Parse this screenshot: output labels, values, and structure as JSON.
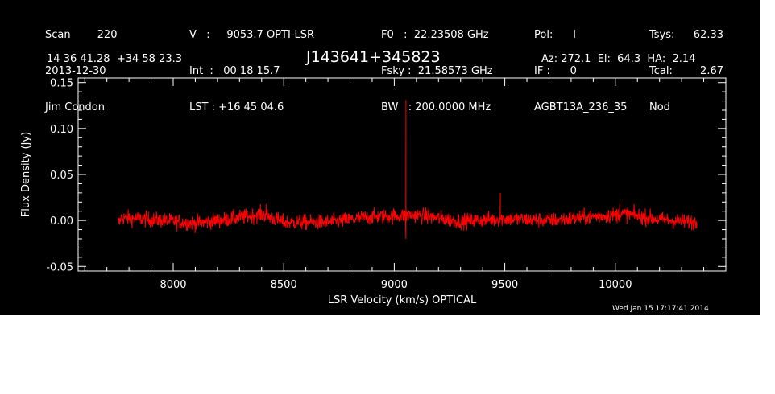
{
  "header": {
    "col1": [
      "Scan        220",
      "2013-12-30",
      "Jim Condon"
    ],
    "col2": [
      "V   :     9053.7 OPTI-LSR",
      "Int  :   00 18 15.7",
      "LST : +16 45 04.6"
    ],
    "col3": [
      "F0   :  22.23508 GHz",
      "Fsky :  21.58573 GHz",
      "BW   : 200.0000 MHz"
    ],
    "col4": [
      "Pol:      I",
      "IF :      0",
      "AGBT13A_236_35"
    ],
    "col5a": [
      "Tsys:",
      "Tcal:",
      "Nod"
    ],
    "col5b": [
      "62.33",
      "2.67",
      ""
    ]
  },
  "coords": "14 36 41.28  +34 58 23.3",
  "source_name": "J143641+345823",
  "az_el_ha": "Az: 272.1  El:  64.3  HA:  2.14",
  "timestamp": "Wed Jan 15 17:17:41 2014",
  "colors": {
    "background": "#000000",
    "axes": "#ffffff",
    "spectrum": "#ff0000"
  },
  "chart_data": {
    "type": "line",
    "xlabel": "LSR Velocity (km/s) OPTICAL",
    "ylabel": "Flux Density (Jy)",
    "xlim": [
      7570,
      10500
    ],
    "ylim": [
      -0.055,
      0.155
    ],
    "x_ticks": [
      8000,
      8500,
      9000,
      9500,
      10000
    ],
    "y_ticks": [
      -0.05,
      0.0,
      0.05,
      0.1,
      0.15
    ],
    "y_tick_labels": [
      "-0.05",
      "0.00",
      "0.05",
      "0.10",
      "0.15"
    ],
    "x_tick_labels": [
      "8000",
      "8500",
      "9000",
      "9500",
      "10000"
    ],
    "series": [
      {
        "x_range": [
          7750,
          10370
        ],
        "baseline_rms": 0.006,
        "baseline_ripple": [
          {
            "x": 7760,
            "y": 0.003
          },
          {
            "x": 7900,
            "y": 0.001
          },
          {
            "x": 8100,
            "y": -0.003
          },
          {
            "x": 8300,
            "y": 0.003
          },
          {
            "x": 8400,
            "y": 0.007
          },
          {
            "x": 8500,
            "y": -0.002
          },
          {
            "x": 8700,
            "y": -0.002
          },
          {
            "x": 8900,
            "y": 0.004
          },
          {
            "x": 9100,
            "y": 0.006
          },
          {
            "x": 9300,
            "y": -0.001
          },
          {
            "x": 9500,
            "y": 0.002
          },
          {
            "x": 9700,
            "y": 0.0
          },
          {
            "x": 9900,
            "y": 0.004
          },
          {
            "x": 10050,
            "y": 0.007
          },
          {
            "x": 10200,
            "y": 0.001
          },
          {
            "x": 10370,
            "y": -0.002
          }
        ],
        "peaks": [
          {
            "x": 9053,
            "y": 0.131
          },
          {
            "x": 9053,
            "y": -0.02
          },
          {
            "x": 9480,
            "y": 0.03
          },
          {
            "x": 8420,
            "y": 0.018
          },
          {
            "x": 10020,
            "y": 0.018
          }
        ]
      }
    ]
  }
}
